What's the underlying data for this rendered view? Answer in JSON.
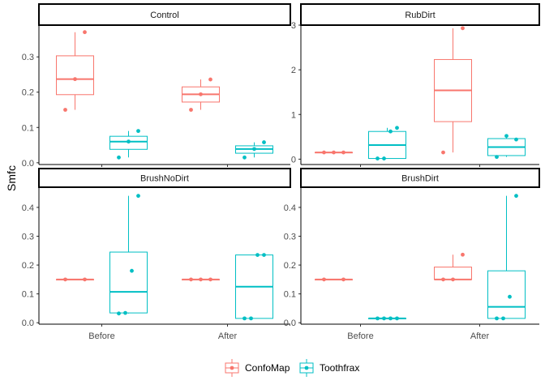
{
  "chart_data": {
    "type": "box",
    "ylabel": "Smfc",
    "categories": [
      "Before",
      "After"
    ],
    "legend": {
      "position": "bottom",
      "entries": [
        "ConfoMap",
        "Toothfrax"
      ]
    },
    "colors": {
      "ConfoMap": "#F8766D",
      "Toothfrax": "#00BFC4"
    },
    "grid": false,
    "panels": [
      {
        "title": "Control",
        "ylim": [
          -0.005,
          0.39
        ],
        "yticks": [
          0.0,
          0.1,
          0.2,
          0.3
        ],
        "ytick_labels": [
          "0.0",
          "0.1",
          "0.2",
          "0.3"
        ],
        "boxes": [
          {
            "series": "ConfoMap",
            "category": "Before",
            "min": 0.15,
            "q1": 0.193,
            "median": 0.237,
            "q3": 0.303,
            "max": 0.37,
            "points": [
              0.15,
              0.237,
              0.37
            ]
          },
          {
            "series": "Toothfrax",
            "category": "Before",
            "min": 0.015,
            "q1": 0.038,
            "median": 0.06,
            "q3": 0.075,
            "max": 0.09,
            "points": [
              0.015,
              0.06,
              0.09
            ]
          },
          {
            "series": "ConfoMap",
            "category": "After",
            "min": 0.15,
            "q1": 0.172,
            "median": 0.194,
            "q3": 0.215,
            "max": 0.236,
            "points": [
              0.15,
              0.194,
              0.236
            ]
          },
          {
            "series": "Toothfrax",
            "category": "After",
            "min": 0.015,
            "q1": 0.027,
            "median": 0.039,
            "q3": 0.048,
            "max": 0.058,
            "points": [
              0.015,
              0.039,
              0.058
            ]
          }
        ]
      },
      {
        "title": "RubDirt",
        "ylim": [
          -0.12,
          3.0
        ],
        "yticks": [
          0,
          1,
          2,
          3
        ],
        "ytick_labels": [
          "0",
          "1",
          "2",
          "3"
        ],
        "boxes": [
          {
            "series": "ConfoMap",
            "category": "Before",
            "min": 0.15,
            "q1": 0.15,
            "median": 0.15,
            "q3": 0.15,
            "max": 0.15,
            "points": [
              0.15,
              0.15,
              0.15
            ]
          },
          {
            "series": "Toothfrax",
            "category": "Before",
            "min": 0.015,
            "q1": 0.015,
            "median": 0.315,
            "q3": 0.62,
            "max": 0.7,
            "points": [
              0.015,
              0.015,
              0.62,
              0.7
            ]
          },
          {
            "series": "ConfoMap",
            "category": "After",
            "min": 0.15,
            "q1": 0.84,
            "median": 1.54,
            "q3": 2.23,
            "max": 2.93,
            "points": [
              0.15,
              2.93
            ]
          },
          {
            "series": "Toothfrax",
            "category": "After",
            "min": 0.05,
            "q1": 0.08,
            "median": 0.27,
            "q3": 0.46,
            "max": 0.52,
            "points": [
              0.05,
              0.52,
              0.44
            ]
          }
        ]
      },
      {
        "title": "BrushNoDirt",
        "ylim": [
          -0.005,
          0.47
        ],
        "yticks": [
          0.0,
          0.1,
          0.2,
          0.3,
          0.4
        ],
        "ytick_labels": [
          "0.0",
          "0.1",
          "0.2",
          "0.3",
          "0.4"
        ],
        "boxes": [
          {
            "series": "ConfoMap",
            "category": "Before",
            "min": 0.15,
            "q1": 0.15,
            "median": 0.15,
            "q3": 0.15,
            "max": 0.15,
            "points": [
              0.15,
              0.15
            ]
          },
          {
            "series": "Toothfrax",
            "category": "Before",
            "min": 0.032,
            "q1": 0.034,
            "median": 0.107,
            "q3": 0.245,
            "max": 0.44,
            "points": [
              0.032,
              0.034,
              0.18,
              0.44
            ]
          },
          {
            "series": "ConfoMap",
            "category": "After",
            "min": 0.15,
            "q1": 0.15,
            "median": 0.15,
            "q3": 0.15,
            "max": 0.15,
            "points": [
              0.15,
              0.15,
              0.15
            ]
          },
          {
            "series": "Toothfrax",
            "category": "After",
            "min": 0.015,
            "q1": 0.015,
            "median": 0.125,
            "q3": 0.235,
            "max": 0.235,
            "points": [
              0.015,
              0.015,
              0.235,
              0.235
            ]
          }
        ]
      },
      {
        "title": "BrushDirt",
        "ylim": [
          -0.005,
          0.47
        ],
        "yticks": [
          0.0,
          0.1,
          0.2,
          0.3,
          0.4
        ],
        "ytick_labels": [
          "0.0",
          "0.1",
          "0.2",
          "0.3",
          "0.4"
        ],
        "boxes": [
          {
            "series": "ConfoMap",
            "category": "Before",
            "min": 0.15,
            "q1": 0.15,
            "median": 0.15,
            "q3": 0.15,
            "max": 0.15,
            "points": [
              0.15,
              0.15
            ]
          },
          {
            "series": "Toothfrax",
            "category": "Before",
            "min": 0.015,
            "q1": 0.015,
            "median": 0.015,
            "q3": 0.015,
            "max": 0.015,
            "points": [
              0.015,
              0.015,
              0.015,
              0.015
            ]
          },
          {
            "series": "ConfoMap",
            "category": "After",
            "min": 0.15,
            "q1": 0.15,
            "median": 0.15,
            "q3": 0.193,
            "max": 0.236,
            "points": [
              0.15,
              0.15,
              0.236
            ]
          },
          {
            "series": "Toothfrax",
            "category": "After",
            "min": 0.015,
            "q1": 0.015,
            "median": 0.055,
            "q3": 0.18,
            "max": 0.44,
            "points": [
              0.015,
              0.015,
              0.09,
              0.44
            ]
          }
        ]
      }
    ]
  }
}
